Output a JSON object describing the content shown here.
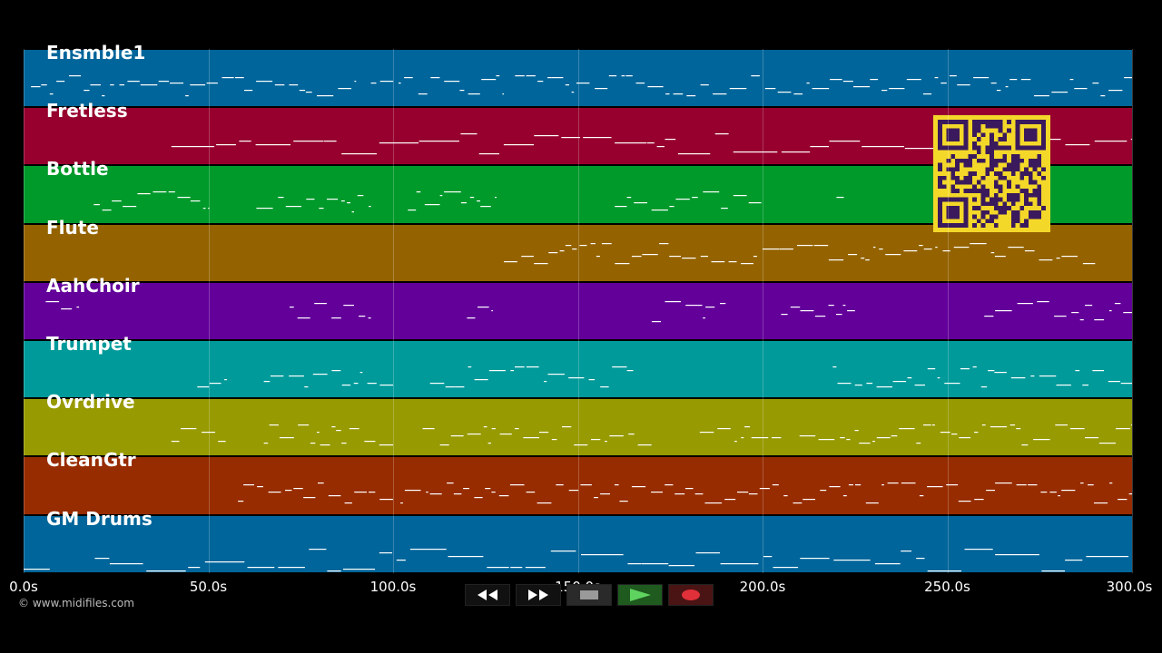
{
  "colors": {
    "background": "#000000",
    "note": "#ffffff",
    "qr_bg": "#f4d829",
    "qr_fg": "#3a1a5c"
  },
  "tracks": [
    {
      "name": "Ensmble1",
      "color": "#00659a"
    },
    {
      "name": "Fretless",
      "color": "#97002e"
    },
    {
      "name": "Bottle",
      "color": "#009a2b"
    },
    {
      "name": "Flute",
      "color": "#946300"
    },
    {
      "name": "AahChoir",
      "color": "#63009a"
    },
    {
      "name": "Trumpet",
      "color": "#009a9a"
    },
    {
      "name": "Ovrdrive",
      "color": "#979a00"
    },
    {
      "name": "CleanGtr",
      "color": "#972c00"
    },
    {
      "name": "GM Drums",
      "color": "#00659a"
    }
  ],
  "timeline": {
    "start_seconds": 0,
    "end_seconds": 300,
    "ticks": [
      "0.0s",
      "50.0s",
      "100.0s",
      "150.0s",
      "200.0s",
      "250.0s",
      "300.0s"
    ]
  },
  "transport": {
    "buttons": [
      {
        "name": "rewind-button",
        "icon": "rewind-icon",
        "color": "#111111"
      },
      {
        "name": "fast-forward-button",
        "icon": "fast-forward-icon",
        "color": "#111111"
      },
      {
        "name": "stop-button",
        "icon": "stop-icon",
        "color": "#2a2a2a"
      },
      {
        "name": "play-button",
        "icon": "play-icon",
        "color": "#1f5a1f"
      },
      {
        "name": "record-button",
        "icon": "record-icon",
        "color": "#4a1414"
      }
    ]
  },
  "copyright": "© www.midifiles.com",
  "qr": {
    "label": "qr-code"
  }
}
